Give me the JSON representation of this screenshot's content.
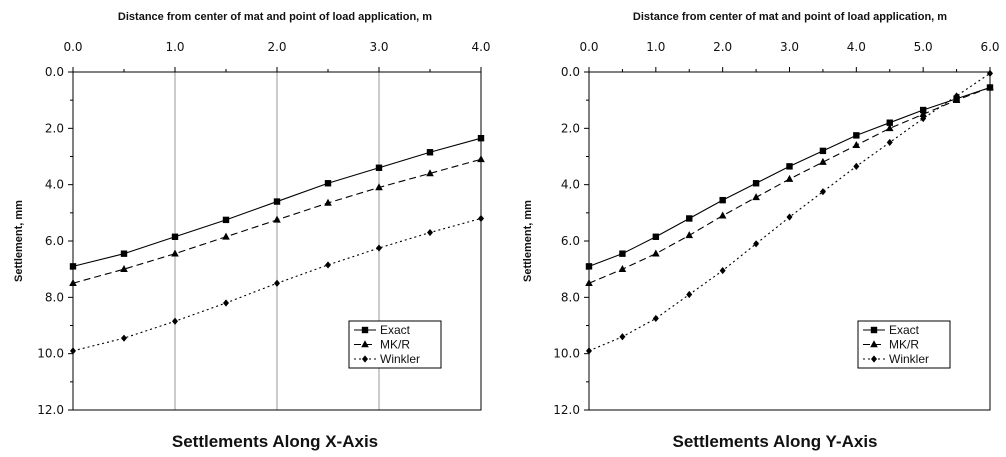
{
  "chart_data": [
    {
      "type": "line",
      "title": "Settlements Along X-Axis",
      "xlabel": "Distance from center of mat and point of load application, m",
      "ylabel": "Settlement, mm",
      "xlim": [
        0,
        4
      ],
      "ylim": [
        0,
        12
      ],
      "y_inverted": true,
      "x_axis_position": "top",
      "grid": "vertical",
      "legend_position": "bottom-right",
      "xticks": [
        "0.0",
        "1.0",
        "2.0",
        "3.0",
        "4.0"
      ],
      "yticks": [
        "0.0",
        "2.0",
        "4.0",
        "6.0",
        "8.0",
        "10.0",
        "12.0"
      ],
      "x": [
        0,
        0.5,
        1,
        1.5,
        2,
        2.5,
        3,
        3.5,
        4
      ],
      "series": [
        {
          "name": "Exact",
          "marker": "square",
          "dash": "solid",
          "values": [
            6.9,
            6.45,
            5.85,
            5.25,
            4.6,
            3.95,
            3.4,
            2.85,
            2.35
          ]
        },
        {
          "name": "MK/R",
          "marker": "triangle",
          "dash": "dashed",
          "values": [
            7.5,
            7.0,
            6.45,
            5.85,
            5.25,
            4.65,
            4.1,
            3.6,
            3.1
          ]
        },
        {
          "name": "Winkler",
          "marker": "diamond",
          "dash": "dotted",
          "values": [
            9.9,
            9.45,
            8.85,
            8.2,
            7.5,
            6.85,
            6.25,
            5.7,
            5.2
          ]
        }
      ]
    },
    {
      "type": "line",
      "title": "Settlements Along Y-Axis",
      "xlabel": "Distance from center of mat and point of load application, m",
      "ylabel": "Settlement, mm",
      "xlim": [
        0,
        6
      ],
      "ylim": [
        0,
        12
      ],
      "y_inverted": true,
      "x_axis_position": "top",
      "grid": "none",
      "legend_position": "bottom-right",
      "xticks": [
        "0.0",
        "1.0",
        "2.0",
        "3.0",
        "4.0",
        "5.0",
        "6.0"
      ],
      "yticks": [
        "0.0",
        "2.0",
        "4.0",
        "6.0",
        "8.0",
        "10.0",
        "12.0"
      ],
      "x": [
        0,
        0.5,
        1,
        1.5,
        2,
        2.5,
        3,
        3.5,
        4,
        4.5,
        5,
        5.5,
        6
      ],
      "series": [
        {
          "name": "Exact",
          "marker": "square",
          "dash": "solid",
          "values": [
            6.9,
            6.45,
            5.85,
            5.2,
            4.55,
            3.95,
            3.35,
            2.8,
            2.25,
            1.8,
            1.35,
            0.95,
            0.55
          ]
        },
        {
          "name": "MK/R",
          "marker": "triangle",
          "dash": "dashed",
          "values": [
            7.5,
            7.0,
            6.45,
            5.8,
            5.1,
            4.45,
            3.8,
            3.2,
            2.6,
            2.0,
            1.5,
            1.0,
            0.55
          ]
        },
        {
          "name": "Winkler",
          "marker": "diamond",
          "dash": "dotted",
          "values": [
            9.9,
            9.4,
            8.75,
            7.9,
            7.05,
            6.1,
            5.15,
            4.25,
            3.35,
            2.5,
            1.65,
            0.85,
            0.05
          ]
        }
      ]
    }
  ]
}
